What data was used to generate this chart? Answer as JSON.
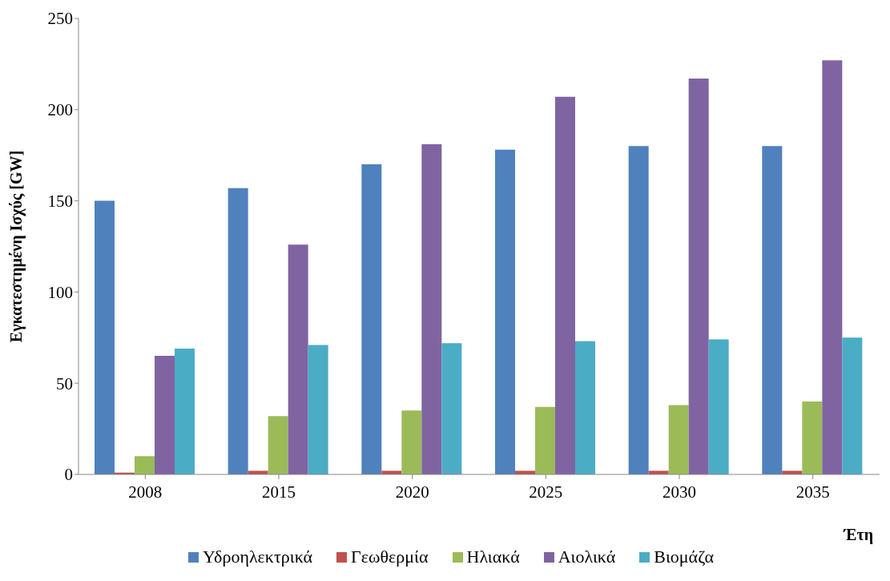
{
  "chart_data": {
    "type": "bar",
    "xlabel": "Έτη",
    "ylabel": "Εγκατεστημένη Ισχύς [GW]",
    "categories": [
      "2008",
      "2015",
      "2020",
      "2025",
      "2030",
      "2035"
    ],
    "series": [
      {
        "name": "Υδροηλεκτρικά",
        "color": "#4f81bd",
        "values": [
          150,
          157,
          170,
          178,
          180,
          180
        ]
      },
      {
        "name": "Γεωθερμία",
        "color": "#c0504d",
        "values": [
          1,
          2,
          2,
          2,
          2,
          2
        ]
      },
      {
        "name": "Ηλιακά",
        "color": "#9bbb59",
        "values": [
          10,
          32,
          35,
          37,
          38,
          40
        ]
      },
      {
        "name": "Αιολικά",
        "color": "#8064a2",
        "values": [
          65,
          126,
          181,
          207,
          217,
          227
        ]
      },
      {
        "name": "Βιομάζα",
        "color": "#4bacc6",
        "values": [
          69,
          71,
          72,
          73,
          74,
          75
        ]
      }
    ],
    "ylim": [
      0,
      250
    ],
    "yticks": [
      0,
      50,
      100,
      150,
      200,
      250
    ],
    "grid": false,
    "legend": "bottom"
  }
}
